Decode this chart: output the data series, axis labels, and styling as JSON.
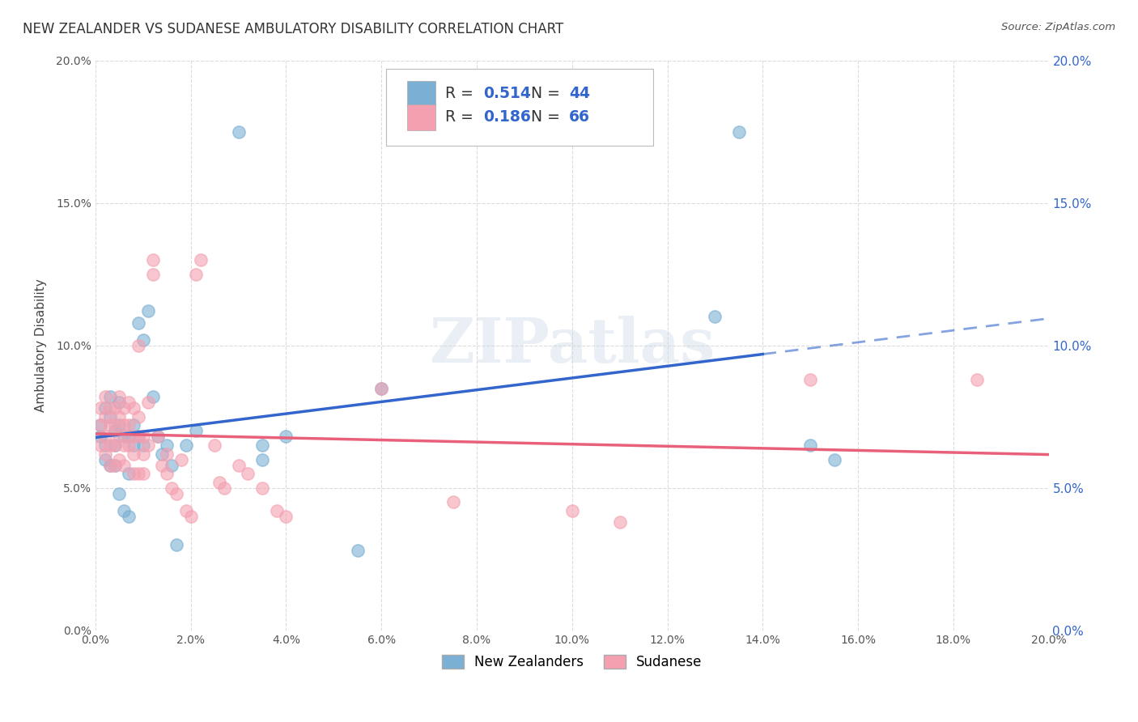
{
  "title": "NEW ZEALANDER VS SUDANESE AMBULATORY DISABILITY CORRELATION CHART",
  "source": "Source: ZipAtlas.com",
  "ylabel": "Ambulatory Disability",
  "watermark": "ZIPatlas",
  "xlim": [
    0.0,
    0.2
  ],
  "ylim": [
    0.0,
    0.2
  ],
  "xticks": [
    0.0,
    0.02,
    0.04,
    0.06,
    0.08,
    0.1,
    0.12,
    0.14,
    0.16,
    0.18,
    0.2
  ],
  "yticks": [
    0.0,
    0.05,
    0.1,
    0.15,
    0.2
  ],
  "nz_color": "#7BAFD4",
  "sud_color": "#F4A0B0",
  "nz_line_color": "#3366CC",
  "sud_line_color": "#E8607A",
  "nz_R": 0.514,
  "nz_N": 44,
  "sud_R": 0.186,
  "sud_N": 66,
  "nz_points": [
    [
      0.001,
      0.072
    ],
    [
      0.001,
      0.068
    ],
    [
      0.002,
      0.078
    ],
    [
      0.002,
      0.065
    ],
    [
      0.002,
      0.06
    ],
    [
      0.003,
      0.082
    ],
    [
      0.003,
      0.075
    ],
    [
      0.003,
      0.058
    ],
    [
      0.004,
      0.07
    ],
    [
      0.004,
      0.065
    ],
    [
      0.004,
      0.058
    ],
    [
      0.005,
      0.08
    ],
    [
      0.005,
      0.072
    ],
    [
      0.005,
      0.048
    ],
    [
      0.006,
      0.068
    ],
    [
      0.006,
      0.042
    ],
    [
      0.007,
      0.068
    ],
    [
      0.007,
      0.055
    ],
    [
      0.007,
      0.04
    ],
    [
      0.008,
      0.072
    ],
    [
      0.008,
      0.065
    ],
    [
      0.009,
      0.108
    ],
    [
      0.009,
      0.068
    ],
    [
      0.01,
      0.102
    ],
    [
      0.01,
      0.065
    ],
    [
      0.011,
      0.112
    ],
    [
      0.012,
      0.082
    ],
    [
      0.013,
      0.068
    ],
    [
      0.014,
      0.062
    ],
    [
      0.015,
      0.065
    ],
    [
      0.016,
      0.058
    ],
    [
      0.017,
      0.03
    ],
    [
      0.019,
      0.065
    ],
    [
      0.021,
      0.07
    ],
    [
      0.03,
      0.175
    ],
    [
      0.035,
      0.065
    ],
    [
      0.035,
      0.06
    ],
    [
      0.04,
      0.068
    ],
    [
      0.055,
      0.028
    ],
    [
      0.06,
      0.085
    ],
    [
      0.13,
      0.11
    ],
    [
      0.135,
      0.175
    ],
    [
      0.15,
      0.065
    ],
    [
      0.155,
      0.06
    ]
  ],
  "sud_points": [
    [
      0.001,
      0.078
    ],
    [
      0.001,
      0.072
    ],
    [
      0.001,
      0.065
    ],
    [
      0.002,
      0.082
    ],
    [
      0.002,
      0.075
    ],
    [
      0.002,
      0.068
    ],
    [
      0.002,
      0.062
    ],
    [
      0.003,
      0.078
    ],
    [
      0.003,
      0.072
    ],
    [
      0.003,
      0.065
    ],
    [
      0.003,
      0.058
    ],
    [
      0.004,
      0.078
    ],
    [
      0.004,
      0.072
    ],
    [
      0.004,
      0.065
    ],
    [
      0.004,
      0.058
    ],
    [
      0.005,
      0.082
    ],
    [
      0.005,
      0.075
    ],
    [
      0.005,
      0.068
    ],
    [
      0.005,
      0.06
    ],
    [
      0.006,
      0.078
    ],
    [
      0.006,
      0.072
    ],
    [
      0.006,
      0.065
    ],
    [
      0.006,
      0.058
    ],
    [
      0.007,
      0.08
    ],
    [
      0.007,
      0.072
    ],
    [
      0.007,
      0.065
    ],
    [
      0.008,
      0.078
    ],
    [
      0.008,
      0.068
    ],
    [
      0.008,
      0.062
    ],
    [
      0.008,
      0.055
    ],
    [
      0.009,
      0.075
    ],
    [
      0.009,
      0.068
    ],
    [
      0.009,
      0.055
    ],
    [
      0.009,
      0.1
    ],
    [
      0.01,
      0.068
    ],
    [
      0.01,
      0.062
    ],
    [
      0.01,
      0.055
    ],
    [
      0.011,
      0.08
    ],
    [
      0.011,
      0.065
    ],
    [
      0.012,
      0.125
    ],
    [
      0.012,
      0.13
    ],
    [
      0.013,
      0.068
    ],
    [
      0.014,
      0.058
    ],
    [
      0.015,
      0.062
    ],
    [
      0.015,
      0.055
    ],
    [
      0.016,
      0.05
    ],
    [
      0.017,
      0.048
    ],
    [
      0.018,
      0.06
    ],
    [
      0.019,
      0.042
    ],
    [
      0.02,
      0.04
    ],
    [
      0.021,
      0.125
    ],
    [
      0.022,
      0.13
    ],
    [
      0.025,
      0.065
    ],
    [
      0.026,
      0.052
    ],
    [
      0.027,
      0.05
    ],
    [
      0.03,
      0.058
    ],
    [
      0.032,
      0.055
    ],
    [
      0.035,
      0.05
    ],
    [
      0.038,
      0.042
    ],
    [
      0.04,
      0.04
    ],
    [
      0.06,
      0.085
    ],
    [
      0.075,
      0.045
    ],
    [
      0.1,
      0.042
    ],
    [
      0.11,
      0.038
    ],
    [
      0.15,
      0.088
    ],
    [
      0.185,
      0.088
    ]
  ]
}
